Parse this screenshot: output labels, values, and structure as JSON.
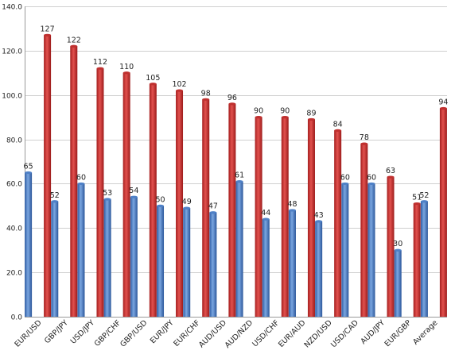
{
  "chart_data": {
    "type": "bar",
    "title": "",
    "xlabel": "",
    "ylabel": "",
    "ylim": [
      0,
      140
    ],
    "yticks": [
      "0.0",
      "20.0",
      "40.0",
      "60.0",
      "80.0",
      "100.0",
      "120.0",
      "140.0"
    ],
    "ytick_values": [
      0,
      20,
      40,
      60,
      80,
      100,
      120,
      140
    ],
    "grid": true,
    "legend": "none",
    "categories": [
      "EUR/USD",
      "GBP/JPY",
      "USD/JPY",
      "GBP/CHF",
      "GBP/USD",
      "EUR/JPY",
      "EUR/CHF",
      "AUD/USD",
      "AUD/NZD",
      "USD/CHF",
      "EUR/AUD",
      "NZD/USD",
      "USD/CAD",
      "AUD/JPY",
      "EUR/GBP",
      "Average"
    ],
    "series": [
      {
        "color": "#4f81c7",
        "values": [
          65,
          52,
          60,
          53,
          54,
          50,
          49,
          47,
          61,
          44,
          48,
          43,
          60,
          60,
          30,
          52
        ],
        "labels": [
          "65",
          "52",
          "60",
          "53",
          "54",
          "50",
          "49",
          "47",
          "61",
          "44",
          "48",
          "43",
          "60",
          "60",
          "30",
          "52"
        ]
      },
      {
        "color": "#c0302f",
        "values": [
          127,
          122,
          112,
          110,
          105,
          102,
          98,
          96,
          90,
          90,
          89,
          84,
          78,
          63,
          51,
          94
        ],
        "labels": [
          "127",
          "122",
          "112",
          "110",
          "105",
          "102",
          "98",
          "96",
          "90",
          "90",
          "89",
          "84",
          "78",
          "63",
          "51",
          "94"
        ]
      }
    ]
  }
}
